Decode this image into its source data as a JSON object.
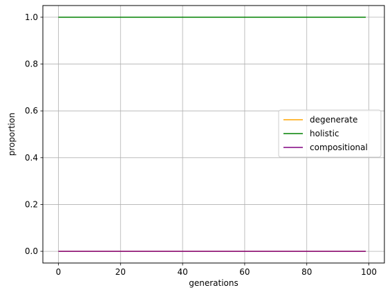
{
  "chart_data": {
    "type": "line",
    "title": "",
    "xlabel": "generations",
    "ylabel": "proportion",
    "xlim": [
      -5,
      105
    ],
    "ylim": [
      -0.05,
      1.05
    ],
    "xticks": [
      0,
      20,
      40,
      60,
      80,
      100
    ],
    "yticks": [
      0.0,
      0.2,
      0.4,
      0.6,
      0.8,
      1.0
    ],
    "xtick_labels": [
      "0",
      "20",
      "40",
      "60",
      "80",
      "100"
    ],
    "ytick_labels": [
      "0.0",
      "0.2",
      "0.4",
      "0.6",
      "0.8",
      "1.0"
    ],
    "grid": true,
    "legend_position": "center-right",
    "series": [
      {
        "name": "degenerate",
        "color": "#FFA500",
        "x": [
          0,
          99
        ],
        "y": [
          0.0,
          0.0
        ]
      },
      {
        "name": "holistic",
        "color": "#008000",
        "x": [
          0,
          99
        ],
        "y": [
          1.0,
          1.0
        ]
      },
      {
        "name": "compositional",
        "color": "#800080",
        "x": [
          0,
          99
        ],
        "y": [
          0.0,
          0.0
        ]
      }
    ]
  }
}
